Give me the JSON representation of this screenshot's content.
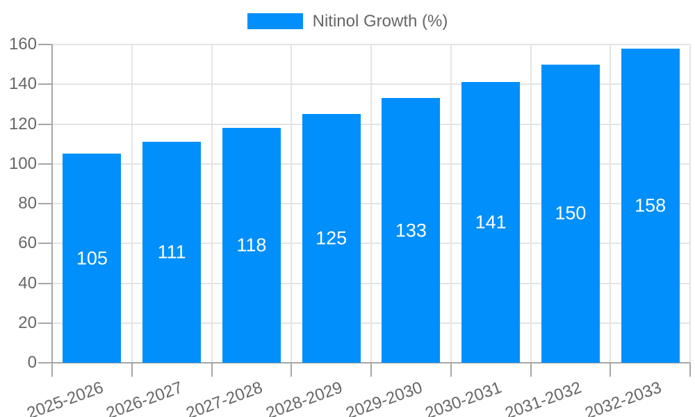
{
  "legend": {
    "label": "Nitinol Growth (%)"
  },
  "chart_data": {
    "type": "bar",
    "title": "",
    "categories": [
      "2025-2026",
      "2026-2027",
      "2027-2028",
      "2028-2029",
      "2029-2030",
      "2030-2031",
      "2031-2032",
      "2032-2033"
    ],
    "series": [
      {
        "name": "Nitinol Growth (%)",
        "color": "#008FFB",
        "values": [
          105,
          111,
          118,
          125,
          133,
          141,
          150,
          158
        ]
      }
    ],
    "value_labels_shown": true,
    "xlabel": "",
    "ylabel": "",
    "ylim": [
      0,
      160
    ],
    "y_ticks": [
      0,
      20,
      40,
      60,
      80,
      100,
      120,
      140,
      160
    ],
    "grid": true,
    "legend_position": "top",
    "x_label_rotation_deg": -20
  },
  "colors": {
    "background": "#ffffff",
    "bar": "#008FFB",
    "axis_line": "#a6a6a6",
    "gridline": "#e4e4e4",
    "tick_text": "#666666",
    "value_label_text": "#ffffff"
  }
}
